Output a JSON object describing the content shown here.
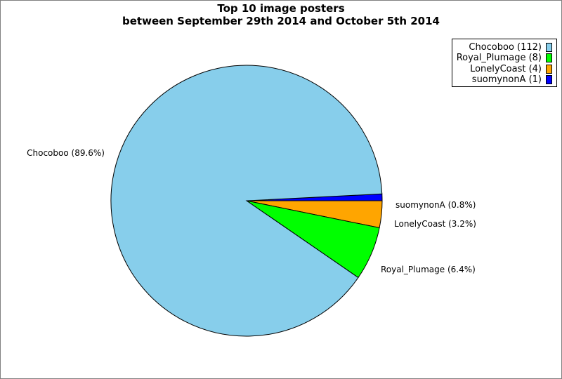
{
  "title_line1": "Top 10 image posters",
  "title_line2": "between September 29th 2014 and October 5th 2014",
  "chart_data": {
    "type": "pie",
    "title": "Top 10 image posters between September 29th 2014 and October 5th 2014",
    "slices": [
      {
        "name": "Chocoboo",
        "count": 112,
        "percent": 89.6,
        "color": "#87CEEB",
        "legend": "Chocoboo (112)",
        "label": "Chocoboo (89.6%)"
      },
      {
        "name": "Royal_Plumage",
        "count": 8,
        "percent": 6.4,
        "color": "#00FF00",
        "legend": "Royal_Plumage (8)",
        "label": "Royal_Plumage (6.4%)"
      },
      {
        "name": "LonelyCoast",
        "count": 4,
        "percent": 3.2,
        "color": "#FFA500",
        "legend": "LonelyCoast (4)",
        "label": "LonelyCoast (3.2%)"
      },
      {
        "name": "suomynonA",
        "count": 1,
        "percent": 0.8,
        "color": "#0000FF",
        "legend": "suomynonA (1)",
        "label": "suomynonA (0.8%)"
      }
    ],
    "legend_position": "top-right"
  }
}
